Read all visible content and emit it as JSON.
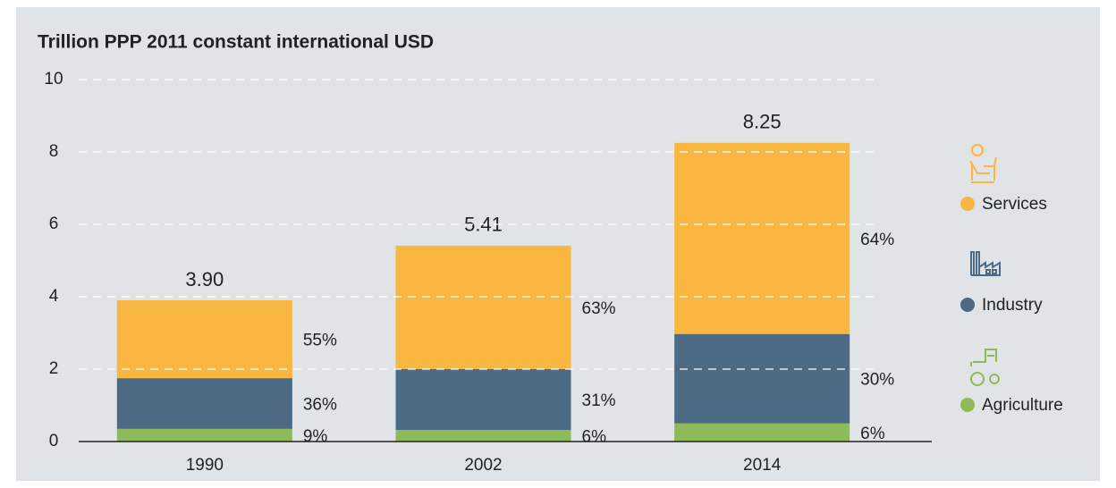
{
  "chart_data": {
    "type": "stacked_bar",
    "title": "Trillion PPP 2011 constant international USD",
    "categories": [
      "1990",
      "2002",
      "2014"
    ],
    "series": [
      {
        "name": "Agriculture",
        "color": "#8fba5a",
        "values": [
          0.35,
          0.32,
          0.5
        ],
        "value_labels": [
          "9%",
          "6%",
          "6%"
        ]
      },
      {
        "name": "Industry",
        "color": "#4d6a85",
        "values": [
          1.4,
          1.68,
          2.47
        ],
        "value_labels": [
          "36%",
          "31%",
          "30%"
        ]
      },
      {
        "name": "Services",
        "color": "#f9b640",
        "values": [
          2.15,
          3.41,
          5.28
        ],
        "value_labels": [
          "55%",
          "63%",
          "64%"
        ]
      }
    ],
    "total_labels": [
      "3.90",
      "5.41",
      "8.25"
    ],
    "ylim": [
      0,
      10
    ],
    "yticks": [
      0,
      2,
      4,
      6,
      8,
      10
    ],
    "grid": true,
    "legend": "right"
  }
}
